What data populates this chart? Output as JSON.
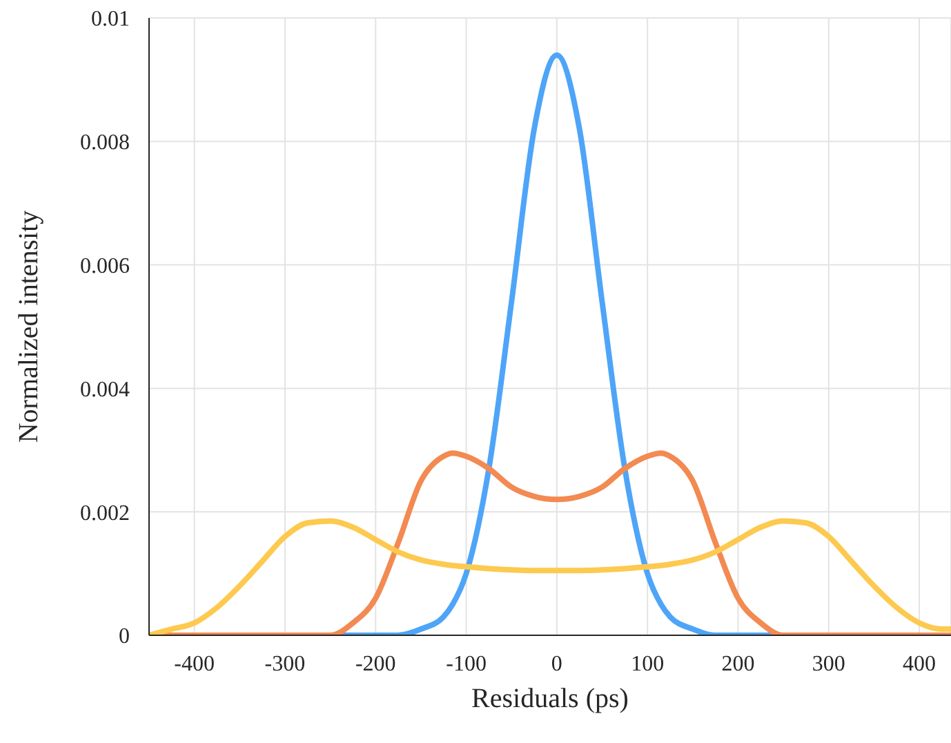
{
  "chart_data": {
    "type": "line",
    "xlabel": "Residuals (ps)",
    "ylabel": "Normalized intensity",
    "x": [
      -450,
      -425,
      -400,
      -375,
      -350,
      -325,
      -300,
      -275,
      -250,
      -225,
      -200,
      -175,
      -150,
      -125,
      -115,
      -100,
      -75,
      -50,
      -25,
      0,
      25,
      50,
      75,
      100,
      115,
      125,
      150,
      175,
      200,
      225,
      250,
      275,
      300,
      325,
      350,
      375,
      400,
      425,
      435
    ],
    "series": [
      {
        "color": "#4ea5f8",
        "values": [
          null,
          null,
          null,
          null,
          null,
          null,
          null,
          0,
          0,
          0,
          0,
          0,
          0.0001,
          0.0003,
          0.0005,
          0.001,
          0.0027,
          0.0054,
          0.0082,
          0.0094,
          0.0082,
          0.0054,
          0.0027,
          0.001,
          0.0005,
          0.0003,
          0.0001,
          0,
          0,
          0,
          0,
          0,
          null,
          null,
          null,
          null,
          null,
          null,
          null
        ]
      },
      {
        "color": "#f28a52",
        "values": [
          0,
          0,
          0,
          0,
          0,
          0,
          0,
          0,
          0,
          0.0002,
          0.0006,
          0.0015,
          0.0025,
          0.0029,
          0.00295,
          0.0029,
          0.0027,
          0.0024,
          0.00225,
          0.0022,
          0.00225,
          0.0024,
          0.0027,
          0.0029,
          0.00295,
          0.0029,
          0.0025,
          0.0015,
          0.0006,
          0.0002,
          0,
          0,
          0,
          0,
          0,
          0,
          0,
          0,
          0
        ]
      },
      {
        "color": "#fdc94f",
        "values": [
          0,
          0.0001,
          0.0002,
          0.00045,
          0.0008,
          0.0012,
          0.0016,
          0.00182,
          0.00185,
          0.00175,
          0.00155,
          0.00135,
          0.00122,
          0.00115,
          0.00113,
          0.00111,
          0.00108,
          0.00106,
          0.00105,
          0.00105,
          0.00105,
          0.00106,
          0.00108,
          0.00111,
          0.00113,
          0.00115,
          0.00122,
          0.00135,
          0.00155,
          0.00175,
          0.00185,
          0.00182,
          0.0016,
          0.0012,
          0.0008,
          0.00045,
          0.0002,
          0.0001,
          0.0001
        ]
      }
    ],
    "xlim": [
      -450,
      435
    ],
    "xticks": [
      -400,
      -300,
      -200,
      -100,
      0,
      100,
      200,
      300,
      400
    ],
    "ylim": [
      0,
      0.01
    ],
    "yticks": [
      0,
      0.002,
      0.004,
      0.006,
      0.008,
      0.01
    ],
    "grid": true,
    "legend": false,
    "marker": "none",
    "line_style": "solid"
  }
}
